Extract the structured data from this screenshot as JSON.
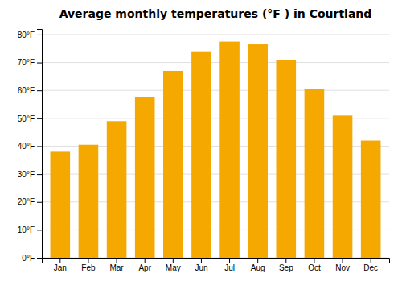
{
  "chart_data": {
    "type": "bar",
    "title": "Average monthly temperatures (°F ) in Courtland",
    "categories": [
      "Jan",
      "Feb",
      "Mar",
      "Apr",
      "May",
      "Jun",
      "Jul",
      "Aug",
      "Sep",
      "Oct",
      "Nov",
      "Dec"
    ],
    "values": [
      38,
      40.5,
      49,
      57.5,
      67,
      74,
      77.5,
      76.5,
      71,
      60.5,
      51,
      42
    ],
    "color": "#F5A800",
    "ylim": [
      0,
      82
    ],
    "yticks": [
      {
        "value": 0,
        "label": "0°F"
      },
      {
        "value": 10,
        "label": "10°F"
      },
      {
        "value": 20,
        "label": "20°F"
      },
      {
        "value": 30,
        "label": "30°F"
      },
      {
        "value": 40,
        "label": "40°F"
      },
      {
        "value": 50,
        "label": "50°F"
      },
      {
        "value": 60,
        "label": "60°F"
      },
      {
        "value": 70,
        "label": "70°F"
      },
      {
        "value": 80,
        "label": "80°F"
      }
    ],
    "grid": true
  }
}
